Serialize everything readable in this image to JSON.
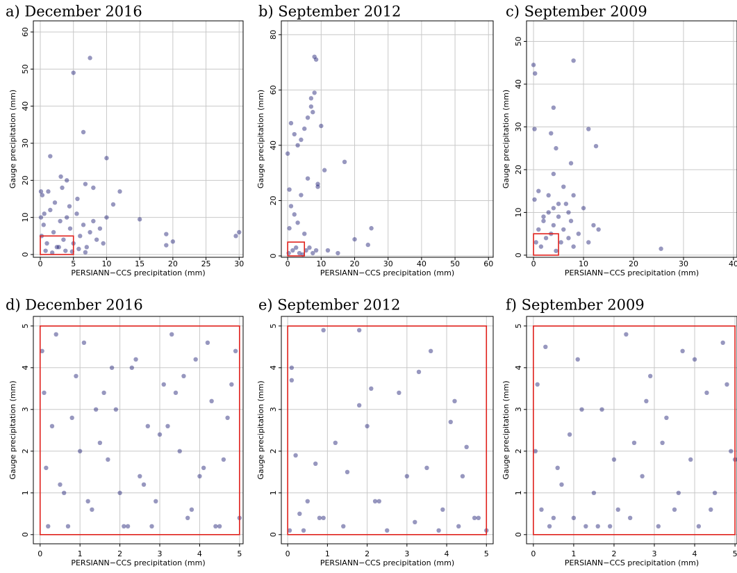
{
  "chart_data": [
    {
      "type": "scatter",
      "title": "a) December 2016",
      "x_label": "PERSIANN−CCS precipitation (mm)",
      "y_label": "Gauge precipitation (mm)",
      "color": "#191970",
      "box_color": "#e0201b",
      "box": {
        "x": [
          0,
          5
        ],
        "y": [
          0,
          5
        ]
      },
      "grid": true,
      "xlim": [
        -1.05,
        30.6
      ],
      "ylim": [
        -0.75,
        63
      ],
      "xticks": [
        0,
        5,
        10,
        15,
        20,
        25,
        30
      ],
      "yticks": [
        0,
        10,
        20,
        30,
        40,
        50,
        60
      ],
      "x": [
        0.2,
        0.5,
        1,
        1.5,
        2,
        2.5,
        3,
        3.5,
        4,
        4.5,
        5,
        5.5,
        6,
        6.5,
        7,
        7.5,
        8,
        8.5,
        9,
        9.5,
        10,
        0.3,
        1.2,
        2.2,
        3.3,
        4.4,
        5.6,
        6.8,
        0.8,
        1.8,
        2.8,
        3.8,
        4.8,
        5.8,
        6.8,
        0.1,
        0.6,
        3.1,
        5,
        7.5,
        6.5,
        10,
        1.5,
        19,
        19,
        30,
        29.5,
        12,
        15,
        20,
        0.1,
        4,
        11,
        8
      ],
      "y": [
        5,
        8,
        3,
        12,
        6,
        2,
        9,
        4,
        10,
        7,
        3,
        11,
        5,
        8,
        2,
        6,
        9,
        4,
        7,
        3,
        10,
        16,
        17,
        14,
        18,
        13,
        15,
        19,
        1,
        0.5,
        2,
        1,
        0.8,
        1.5,
        0.6,
        10,
        11,
        21,
        49,
        53,
        33,
        26,
        26.5,
        5.5,
        2.5,
        6,
        5,
        17,
        9.5,
        3.5,
        17,
        20,
        13.5,
        18
      ]
    },
    {
      "type": "scatter",
      "title": "b) September 2012",
      "x_label": "PERSIANN−CCS precipitation (mm)",
      "y_label": "Gauge precipitation (mm)",
      "color": "#191970",
      "box_color": "#e0201b",
      "box": {
        "x": [
          0,
          5
        ],
        "y": [
          0,
          5
        ]
      },
      "grid": true,
      "xlim": [
        -1.9,
        61.4
      ],
      "ylim": [
        -0.5,
        85
      ],
      "xticks": [
        0,
        10,
        20,
        30,
        40,
        50,
        60
      ],
      "yticks": [
        0,
        20,
        40,
        60,
        80
      ],
      "x": [
        0,
        0.5,
        1,
        2,
        3,
        4,
        5,
        6,
        7,
        8,
        9,
        10,
        0.3,
        1.5,
        2.5,
        3.5,
        4.5,
        5.5,
        6.5,
        7.5,
        8.5,
        0.5,
        2,
        4,
        6,
        7,
        7.5,
        8,
        8.5,
        9,
        11,
        12,
        17,
        20,
        25,
        24,
        1,
        3,
        5,
        15
      ],
      "y": [
        37,
        24,
        48,
        44,
        40,
        42,
        46,
        50,
        57,
        59,
        25,
        47,
        1,
        2,
        3,
        1,
        0.5,
        2,
        3,
        1,
        2,
        10,
        15,
        22,
        28,
        54,
        52,
        72,
        71,
        26,
        31,
        2,
        34,
        6,
        10,
        4,
        18,
        12,
        8,
        1
      ]
    },
    {
      "type": "scatter",
      "title": "c) September 2009",
      "x_label": "PERSIANN−CCS precipitation (mm)",
      "y_label": "Gauge precipitation (mm)",
      "color": "#191970",
      "box_color": "#e0201b",
      "box": {
        "x": [
          0,
          5
        ],
        "y": [
          0,
          5
        ]
      },
      "grid": true,
      "xlim": [
        -1.4,
        40.7
      ],
      "ylim": [
        -0.5,
        54.8
      ],
      "xticks": [
        0,
        10,
        20,
        30,
        40
      ],
      "yticks": [
        0,
        10,
        20,
        30,
        40,
        50
      ],
      "x": [
        0.5,
        1,
        1.5,
        2,
        2.5,
        3,
        3.5,
        4,
        4.5,
        5,
        5.5,
        6,
        6.5,
        7,
        7.5,
        8,
        9,
        10,
        11,
        12,
        0.2,
        1,
        2,
        3,
        4,
        5,
        6,
        7,
        8,
        13,
        0,
        0.3,
        8,
        4,
        3.5,
        0.2,
        11,
        12.5,
        4.5,
        25.5,
        7.5,
        4
      ],
      "y": [
        3,
        6,
        2,
        8,
        4,
        10,
        5,
        7,
        1,
        9,
        3,
        6,
        12,
        4,
        8,
        2,
        5,
        11,
        3,
        7,
        13,
        15,
        9,
        14,
        11,
        12,
        16,
        10,
        14,
        6,
        44.5,
        42.5,
        45.5,
        34.5,
        28.5,
        29.5,
        29.5,
        25.5,
        25,
        1.5,
        21.5,
        19
      ]
    },
    {
      "type": "scatter",
      "title": "d) December 2016",
      "x_label": "PERSIANN−CCS precipitation (mm)",
      "y_label": "Gauge precipitation (mm)",
      "color": "#191970",
      "box_color": "#e0201b",
      "box": {
        "x": [
          0,
          5
        ],
        "y": [
          0,
          5
        ]
      },
      "grid": true,
      "xlim": [
        -0.17,
        5.09
      ],
      "ylim": [
        -0.22,
        5.23
      ],
      "xticks": [
        0,
        1,
        2,
        3,
        4,
        5
      ],
      "yticks": [
        0,
        1,
        2,
        3,
        4,
        5
      ],
      "x": [
        0.05,
        0.1,
        0.3,
        0.5,
        0.7,
        0.9,
        1.1,
        1.3,
        1.5,
        1.7,
        1.9,
        2.1,
        2.3,
        2.5,
        2.7,
        2.9,
        3.1,
        3.3,
        3.5,
        3.7,
        3.9,
        4.1,
        4.3,
        4.5,
        4.7,
        4.9,
        0.2,
        0.6,
        1,
        1.4,
        1.8,
        2.2,
        2.6,
        3,
        3.4,
        3.8,
        4.2,
        4.6,
        5,
        0.15,
        0.4,
        0.8,
        1.2,
        1.6,
        2,
        2.4,
        2.8,
        3.2,
        3.6,
        4,
        4.4,
        4.8
      ],
      "y": [
        4.4,
        3.4,
        2.6,
        1.2,
        0.2,
        3.8,
        4.6,
        0.6,
        2.2,
        1.8,
        3,
        0.2,
        4,
        1.4,
        2.6,
        0.8,
        3.6,
        4.8,
        2,
        0.4,
        4.2,
        1.6,
        3.2,
        0.2,
        2.8,
        4.4,
        0.2,
        1,
        2,
        3,
        4,
        0.2,
        1.2,
        2.4,
        3.4,
        0.6,
        4.6,
        1.8,
        0.4,
        1.6,
        4.8,
        2.8,
        0.8,
        3.4,
        1,
        4.2,
        0.2,
        2.6,
        3.8,
        1.4,
        0.2,
        3.6
      ]
    },
    {
      "type": "scatter",
      "title": "e) September 2012",
      "x_label": "PERSIANN−CCS precipitation (mm)",
      "y_label": "Gauge precipitation (mm)",
      "color": "#191970",
      "box_color": "#e0201b",
      "box": {
        "x": [
          0,
          5
        ],
        "y": [
          0,
          5
        ]
      },
      "grid": true,
      "xlim": [
        -0.16,
        5.17
      ],
      "ylim": [
        -0.22,
        5.23
      ],
      "xticks": [
        0,
        1,
        2,
        3,
        4,
        5
      ],
      "yticks": [
        0,
        1,
        2,
        3,
        4,
        5
      ],
      "x": [
        0.05,
        0.1,
        0.1,
        0.2,
        0.3,
        0.5,
        0.7,
        0.8,
        0.9,
        1.2,
        1.5,
        1.8,
        1.8,
        2,
        2.1,
        2.3,
        2.5,
        2.8,
        3,
        3.2,
        3.3,
        3.5,
        3.6,
        3.9,
        4.1,
        4.2,
        4.3,
        4.4,
        4.5,
        4.8,
        5,
        0.4,
        0.9,
        1.4,
        2.2,
        3.8,
        4.7
      ],
      "y": [
        0.1,
        4,
        3.7,
        1.9,
        0.5,
        0.8,
        1.7,
        0.4,
        4.9,
        2.2,
        1.5,
        4.9,
        3.1,
        2.6,
        3.5,
        0.8,
        0.1,
        3.4,
        1.4,
        0.3,
        3.9,
        1.6,
        4.4,
        0.6,
        2.7,
        3.2,
        0.2,
        1.4,
        2.1,
        0.4,
        0.1,
        0.1,
        0.4,
        0.2,
        0.8,
        0.1,
        0.4
      ]
    },
    {
      "type": "scatter",
      "title": "f) September 2009",
      "x_label": "PERSIANN−CCS precipitation (mm)",
      "y_label": "Gauge precipitation (mm)",
      "color": "#191970",
      "box_color": "#e0201b",
      "box": {
        "x": [
          0,
          5
        ],
        "y": [
          0,
          5
        ]
      },
      "grid": true,
      "xlim": [
        -0.17,
        5.05
      ],
      "ylim": [
        -0.22,
        5.23
      ],
      "xticks": [
        0,
        1,
        2,
        3,
        4,
        5
      ],
      "yticks": [
        0,
        1,
        2,
        3,
        4,
        5
      ],
      "x": [
        0.05,
        0.2,
        0.3,
        0.5,
        0.7,
        0.9,
        1.1,
        1.3,
        1.5,
        1.7,
        1.9,
        2.1,
        2.3,
        2.5,
        2.7,
        2.9,
        3.1,
        3.3,
        3.5,
        3.7,
        3.9,
        4.1,
        4.3,
        4.5,
        4.7,
        4.9,
        0.1,
        0.4,
        0.6,
        1,
        1.2,
        1.6,
        2,
        2.4,
        2.8,
        3.2,
        3.6,
        4,
        4.4,
        4.8,
        5
      ],
      "y": [
        2,
        0.6,
        4.5,
        0.4,
        1.2,
        2.4,
        4.2,
        0.2,
        1,
        3,
        0.2,
        0.6,
        4.8,
        2.2,
        1.4,
        3.8,
        0.2,
        2.8,
        0.6,
        4.4,
        1.8,
        0.2,
        3.4,
        1,
        4.6,
        2,
        3.6,
        0.2,
        1.6,
        0.4,
        3,
        0.2,
        1.8,
        0.4,
        3.2,
        2.2,
        1,
        4.2,
        0.6,
        3.6,
        1.8
      ]
    }
  ]
}
